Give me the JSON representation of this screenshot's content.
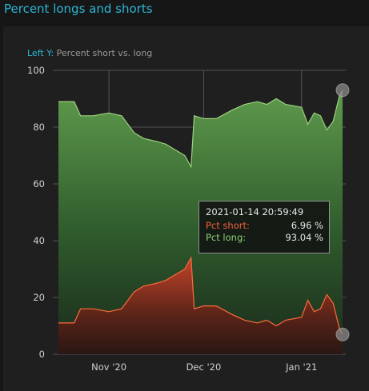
{
  "title": "Percent longs and shorts",
  "left_axis": {
    "tag": "Left Y:",
    "label": "Percent short vs. long"
  },
  "tooltip": {
    "date": "2021-01-14 20:59:49",
    "short_label": "Pct short:",
    "short_value": "6.96 %",
    "long_label": "Pct long:",
    "long_value": "93.04 %"
  },
  "colors": {
    "long": "#6fae54",
    "short": "#d9482a",
    "accent": "#2bb6d6",
    "grid": "#6a6a6a"
  },
  "chart_data": {
    "type": "area",
    "ylim": [
      0,
      100
    ],
    "yticks": [
      0,
      20,
      40,
      60,
      80,
      100
    ],
    "xlim": [
      "2020-10-16",
      "2021-01-14"
    ],
    "xticks": [
      {
        "date": "2020-11-01",
        "label": "Nov '20"
      },
      {
        "date": "2020-12-01",
        "label": "Dec '20"
      },
      {
        "date": "2021-01-01",
        "label": "Jan '21"
      }
    ],
    "grid": true,
    "series": [
      {
        "name": "Pct short",
        "x": [
          "2020-10-16",
          "2020-10-21",
          "2020-10-23",
          "2020-10-27",
          "2020-11-01",
          "2020-11-05",
          "2020-11-09",
          "2020-11-12",
          "2020-11-16",
          "2020-11-19",
          "2020-11-22",
          "2020-11-25",
          "2020-11-27",
          "2020-11-28",
          "2020-12-01",
          "2020-12-05",
          "2020-12-10",
          "2020-12-14",
          "2020-12-18",
          "2020-12-21",
          "2020-12-24",
          "2020-12-27",
          "2021-01-01",
          "2021-01-03",
          "2021-01-05",
          "2021-01-07",
          "2021-01-09",
          "2021-01-11",
          "2021-01-13",
          "2021-01-14"
        ],
        "values": [
          11,
          11,
          16,
          16,
          15,
          16,
          22,
          24,
          25,
          26,
          28,
          30,
          34,
          16,
          17,
          17,
          14,
          12,
          11,
          12,
          10,
          12,
          13,
          19,
          15,
          16,
          21,
          18,
          9,
          6.96
        ]
      },
      {
        "name": "Pct long",
        "x": [
          "2020-10-16",
          "2020-10-21",
          "2020-10-23",
          "2020-10-27",
          "2020-11-01",
          "2020-11-05",
          "2020-11-09",
          "2020-11-12",
          "2020-11-16",
          "2020-11-19",
          "2020-11-22",
          "2020-11-25",
          "2020-11-27",
          "2020-11-28",
          "2020-12-01",
          "2020-12-05",
          "2020-12-10",
          "2020-12-14",
          "2020-12-18",
          "2020-12-21",
          "2020-12-24",
          "2020-12-27",
          "2021-01-01",
          "2021-01-03",
          "2021-01-05",
          "2021-01-07",
          "2021-01-09",
          "2021-01-11",
          "2021-01-13",
          "2021-01-14"
        ],
        "values": [
          89,
          89,
          84,
          84,
          85,
          84,
          78,
          76,
          75,
          74,
          72,
          70,
          66,
          84,
          83,
          83,
          86,
          88,
          89,
          88,
          90,
          88,
          87,
          81,
          85,
          84,
          79,
          82,
          91,
          93.04
        ]
      }
    ]
  }
}
